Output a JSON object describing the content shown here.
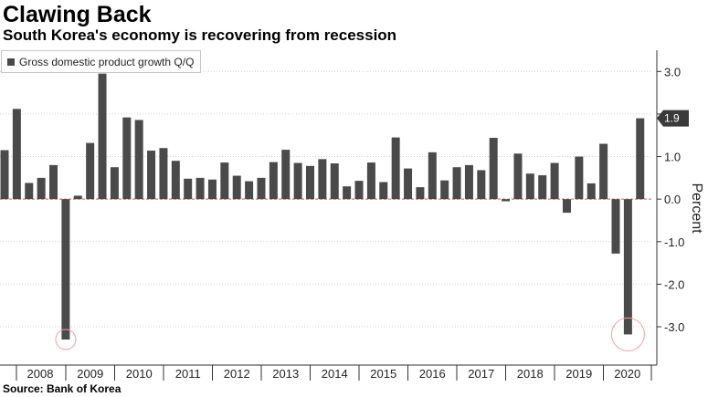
{
  "title": "Clawing Back",
  "subtitle": "South Korea's economy is recovering from recession",
  "source": "Source: Bank of Korea",
  "legend": {
    "label": "Gross domestic product growth Q/Q",
    "icon": "square-swatch-icon"
  },
  "colors": {
    "bar": "#4a4a4a",
    "zero_line": "#e05060",
    "grid": "#d0d0d0",
    "circle": "#f0a0a8",
    "last_badge": "#3a3a3a"
  },
  "chart_data": {
    "type": "bar",
    "title": "Clawing Back",
    "subtitle": "South Korea's economy is recovering from recession",
    "ylabel": "Percent",
    "xlabel": "",
    "ylim": [
      -3.9,
      3.5
    ],
    "yticks": [
      3.0,
      2.0,
      1.0,
      0.0,
      -1.0,
      -2.0,
      -3.0
    ],
    "ytick_labels": [
      "3.0",
      "2.0",
      "1.0",
      "0.0",
      "-1.0",
      "-2.0",
      "-3.0"
    ],
    "y_axis_side": "right",
    "grid": true,
    "legend_position": "top-left",
    "years": [
      "2008",
      "2009",
      "2010",
      "2011",
      "2012",
      "2013",
      "2014",
      "2015",
      "2016",
      "2017",
      "2018",
      "2019",
      "2020"
    ],
    "series": [
      {
        "name": "Gross domestic product growth Q/Q",
        "values": [
          1.15,
          2.12,
          0.38,
          0.5,
          0.8,
          -3.3,
          0.08,
          1.32,
          2.95,
          0.75,
          1.92,
          1.86,
          1.14,
          1.2,
          0.9,
          0.48,
          0.5,
          0.46,
          0.86,
          0.55,
          0.42,
          0.5,
          0.87,
          1.16,
          0.85,
          0.78,
          0.94,
          0.84,
          0.3,
          0.43,
          0.86,
          0.4,
          1.45,
          0.72,
          0.28,
          1.1,
          0.44,
          0.75,
          0.8,
          0.68,
          1.44,
          -0.05,
          1.07,
          0.6,
          0.56,
          0.85,
          -0.32,
          1.0,
          0.37,
          1.3,
          -1.28,
          -3.18,
          1.9
        ]
      }
    ],
    "last_value_label": "1.9",
    "highlighted_values": [
      -3.3,
      -3.18
    ]
  }
}
